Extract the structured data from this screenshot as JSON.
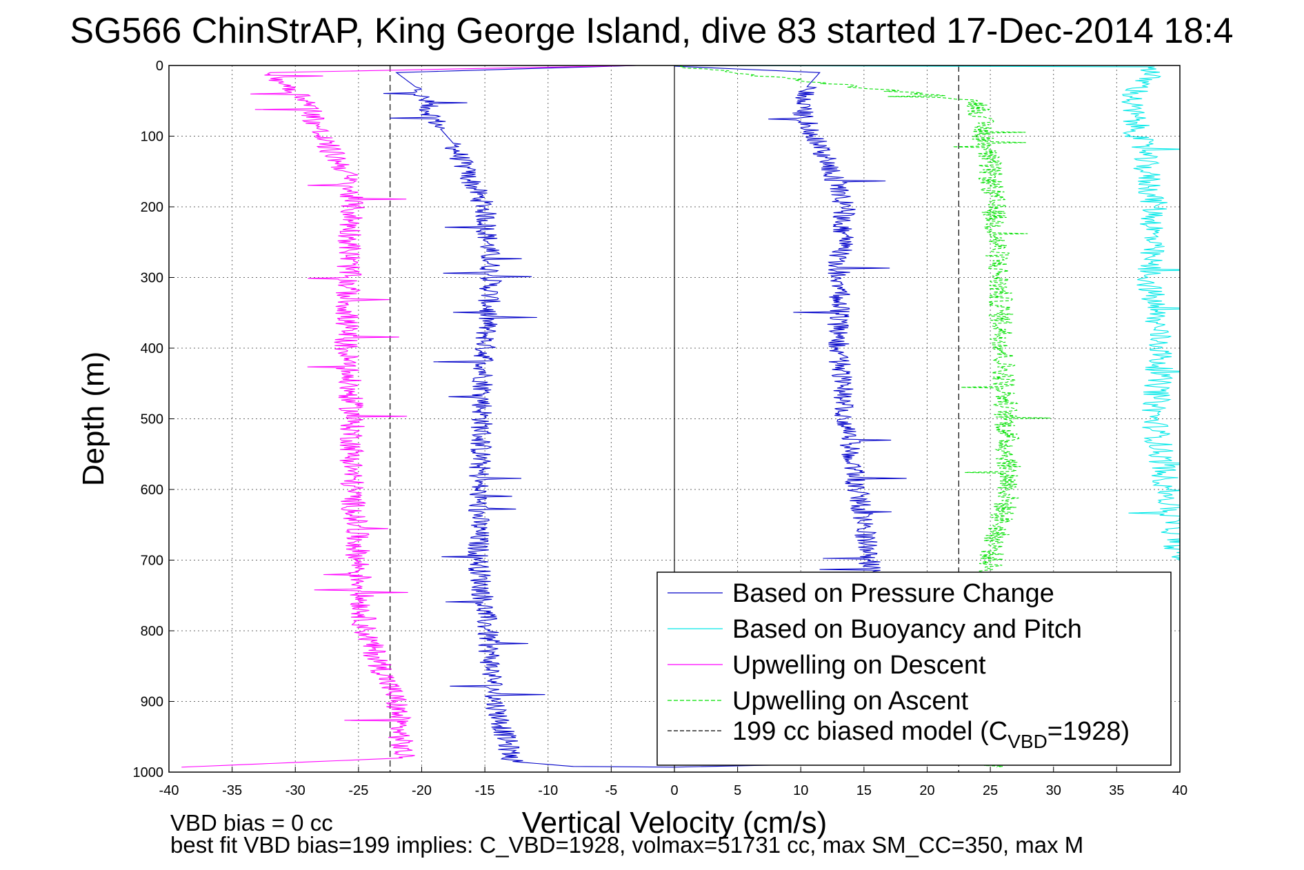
{
  "chart_data": {
    "type": "line",
    "title": "SG566 ChinStrAP, King George Island, dive 83 started 17-Dec-2014 18:4",
    "xlabel": "Vertical Velocity (cm/s)",
    "ylabel": "Depth (m)",
    "xlim": [
      -40,
      40
    ],
    "ylim": [
      1000,
      0
    ],
    "y_reversed": true,
    "grid": true,
    "legend_placement": "bottom-right",
    "xticks": [
      "-40",
      "-35",
      "-30",
      "-25",
      "-20",
      "-15",
      "-10",
      "-5",
      "0",
      "5",
      "10",
      "15",
      "20",
      "25",
      "30",
      "35",
      "40"
    ],
    "yticks": [
      "0",
      "100",
      "200",
      "300",
      "400",
      "500",
      "600",
      "700",
      "800",
      "900",
      "1000"
    ],
    "vertical_reference_lines": [
      -22.5,
      0,
      22.5
    ],
    "series": [
      {
        "name": "Based on Pressure Change",
        "color": "#0000c8",
        "style": "solid",
        "points": [
          [
            -3,
            0
          ],
          [
            -22,
            10
          ],
          [
            -20.5,
            30
          ],
          [
            -19.5,
            60
          ],
          [
            -18.5,
            90
          ],
          [
            -17.5,
            110
          ],
          [
            -16.5,
            150
          ],
          [
            -15,
            200
          ],
          [
            -14.5,
            300
          ],
          [
            -15,
            400
          ],
          [
            -15.2,
            500
          ],
          [
            -15.5,
            600
          ],
          [
            -15.5,
            700
          ],
          [
            -14.8,
            800
          ],
          [
            -14.2,
            900
          ],
          [
            -12.8,
            985
          ],
          [
            -8,
            992
          ],
          [
            0,
            993
          ],
          [
            8,
            990
          ],
          [
            12,
            975
          ],
          [
            14.5,
            900
          ],
          [
            15,
            800
          ],
          [
            15.5,
            700
          ],
          [
            15,
            650
          ],
          [
            14.5,
            600
          ],
          [
            13.5,
            500
          ],
          [
            13,
            400
          ],
          [
            13,
            300
          ],
          [
            13.5,
            200
          ],
          [
            12.5,
            150
          ],
          [
            11,
            100
          ],
          [
            10,
            60
          ],
          [
            10.5,
            30
          ],
          [
            11.5,
            10
          ],
          [
            0,
            1
          ]
        ]
      },
      {
        "name": "Based on Buoyancy and Pitch",
        "color": "#00e8e8",
        "style": "solid",
        "points": [
          [
            0,
            0
          ],
          [
            40,
            0
          ]
        ]
      },
      {
        "name": "Upwelling on Descent",
        "color": "#ff00ff",
        "style": "solid",
        "points": [
          [
            -3,
            0
          ],
          [
            -32,
            10
          ],
          [
            -29,
            50
          ],
          [
            -28,
            100
          ],
          [
            -26,
            150
          ],
          [
            -25.5,
            200
          ],
          [
            -25.8,
            300
          ],
          [
            -26,
            400
          ],
          [
            -25.5,
            500
          ],
          [
            -25.5,
            600
          ],
          [
            -25,
            700
          ],
          [
            -24.5,
            800
          ],
          [
            -22,
            900
          ],
          [
            -21.5,
            980
          ],
          [
            -39,
            993
          ]
        ]
      },
      {
        "name": "Upwelling on Ascent",
        "color": "#00e000",
        "style": "dashed",
        "points": [
          [
            0,
            0
          ],
          [
            24,
            50
          ],
          [
            25,
            150
          ],
          [
            25.5,
            250
          ],
          [
            26,
            400
          ],
          [
            26.5,
            600
          ],
          [
            25,
            700
          ],
          [
            25.5,
            993
          ]
        ]
      },
      {
        "name": "199 cc biased model (CVBD=1928)",
        "color": "#000000",
        "style": "dashed",
        "points": [
          [
            -22.5,
            0
          ],
          [
            -22.5,
            1000
          ]
        ]
      }
    ],
    "legend_entries": [
      {
        "label": "Based on Pressure Change",
        "color": "#0000c8",
        "style": "solid"
      },
      {
        "label": "Based on Buoyancy and Pitch",
        "color": "#00e8e8",
        "style": "solid"
      },
      {
        "label": "Upwelling on Descent",
        "color": "#ff00ff",
        "style": "solid"
      },
      {
        "label": "Upwelling on Ascent",
        "color": "#00e000",
        "style": "dashed"
      },
      {
        "label_main": "199 cc biased model (C",
        "label_sub": "VBD",
        "label_tail": "=1928)",
        "color": "#000000",
        "style": "dashed"
      }
    ],
    "footer_lines": [
      "VBD bias = 0 cc",
      "best fit VBD bias=199 implies: C_VBD=1928, volmax=51731 cc, max SM_CC=350, max M"
    ]
  }
}
